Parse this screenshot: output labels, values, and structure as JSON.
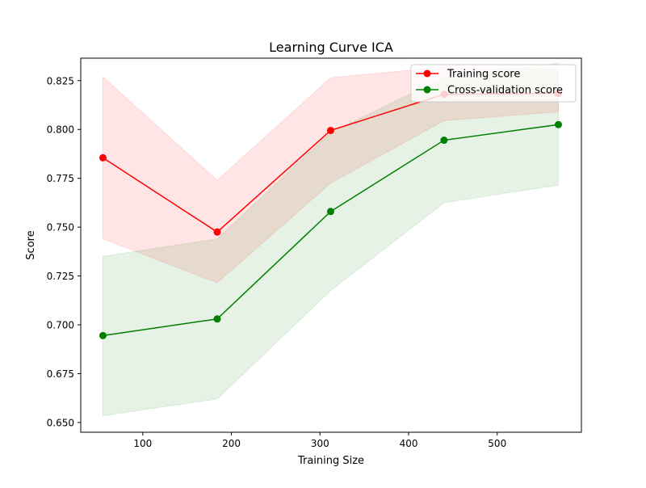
{
  "chart_data": {
    "type": "line",
    "title": "Learning Curve ICA",
    "xlabel": "Training Size",
    "ylabel": "Score",
    "xlim": [
      30,
      595
    ],
    "ylim": [
      0.645,
      0.8365
    ],
    "xticks": [
      100,
      200,
      300,
      400,
      500
    ],
    "xtick_labels": [
      "100",
      "200",
      "300",
      "400",
      "500"
    ],
    "yticks": [
      0.65,
      0.675,
      0.7,
      0.725,
      0.75,
      0.775,
      0.8,
      0.825
    ],
    "ytick_labels": [
      "0.650",
      "0.675",
      "0.700",
      "0.725",
      "0.750",
      "0.775",
      "0.800",
      "0.825"
    ],
    "grid": false,
    "legend_position": "top-right",
    "x": [
      55,
      184,
      312,
      440,
      569
    ],
    "series": [
      {
        "name": "Training score",
        "color": "#ff0000",
        "marker": "circle",
        "values": [
          0.7855,
          0.7475,
          0.7995,
          0.818,
          0.8185
        ],
        "band_upper": [
          0.827,
          0.774,
          0.8265,
          0.832,
          0.831
        ],
        "band_lower": [
          0.744,
          0.7215,
          0.7725,
          0.8045,
          0.809
        ],
        "band_color": "#ff0000",
        "band_opacity": 0.1
      },
      {
        "name": "Cross-validation score",
        "color": "#008000",
        "marker": "circle",
        "values": [
          0.6945,
          0.703,
          0.758,
          0.7945,
          0.8025
        ],
        "band_upper": [
          0.735,
          0.744,
          0.7985,
          0.8265,
          0.834
        ],
        "band_lower": [
          0.6535,
          0.662,
          0.7175,
          0.7625,
          0.7715
        ],
        "band_color": "#008000",
        "band_opacity": 0.1
      }
    ]
  }
}
